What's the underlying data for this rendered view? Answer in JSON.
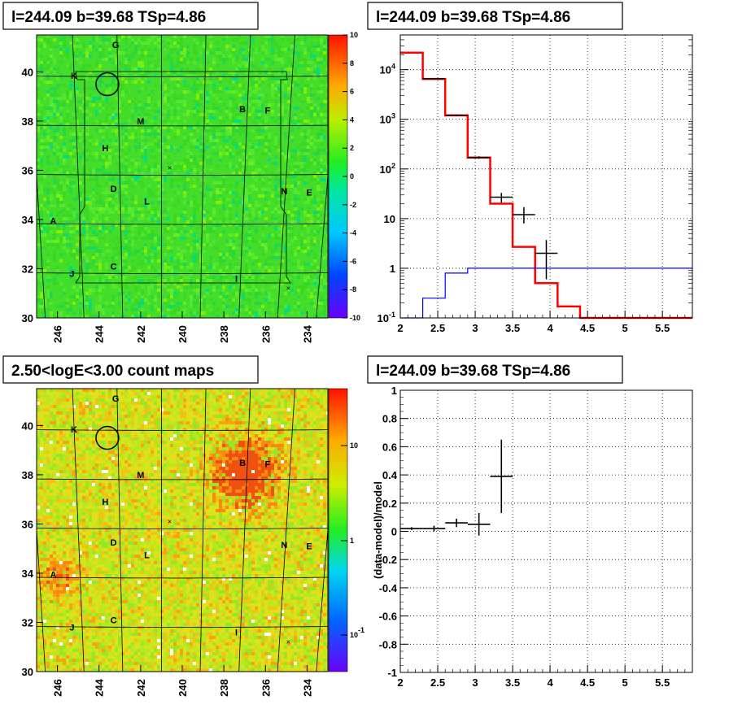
{
  "colors": {
    "red": "#ff0000",
    "blue": "#0000ff",
    "black": "#000000",
    "green_map": "#33dd22"
  },
  "chart_data": [
    {
      "type": "heatmap",
      "title": "l=244.09 b=39.68 TSp=4.86",
      "x_ticks": [
        "246",
        "244",
        "242",
        "240",
        "238",
        "236",
        "234"
      ],
      "y_ticks": [
        "40",
        "38",
        "36",
        "34",
        "32",
        "30"
      ],
      "xlim": [
        247,
        233
      ],
      "ylim": [
        30,
        41.5
      ],
      "palette_ticks": [
        "10",
        "8",
        "6",
        "4",
        "2",
        "0",
        "-2",
        "-4",
        "-6",
        "-8",
        "-10"
      ],
      "palette_range": [
        -10,
        10
      ],
      "palette_scale": "linear",
      "source_labels": [
        {
          "t": "G",
          "l": 243.2,
          "b": 41.1
        },
        {
          "t": "K",
          "l": 245.2,
          "b": 39.85
        },
        {
          "t": "M",
          "l": 242.0,
          "b": 38.0
        },
        {
          "t": "B",
          "l": 237.1,
          "b": 38.5
        },
        {
          "t": "F",
          "l": 235.9,
          "b": 38.45
        },
        {
          "t": "H",
          "l": 243.7,
          "b": 36.9
        },
        {
          "t": "D",
          "l": 243.3,
          "b": 35.25
        },
        {
          "t": "L",
          "l": 241.7,
          "b": 34.75
        },
        {
          "t": "N",
          "l": 235.1,
          "b": 35.15
        },
        {
          "t": "E",
          "l": 233.9,
          "b": 35.1
        },
        {
          "t": "A",
          "l": 246.2,
          "b": 33.95
        },
        {
          "t": "C",
          "l": 243.3,
          "b": 32.1
        },
        {
          "t": "J",
          "l": 245.3,
          "b": 31.8
        },
        {
          "t": "I",
          "l": 237.4,
          "b": 31.6
        }
      ],
      "circle": {
        "l": 243.6,
        "b": 39.5
      },
      "markers": [
        {
          "l": 240.6,
          "b": 36.1
        },
        {
          "l": 234.9,
          "b": 31.2
        }
      ]
    },
    {
      "type": "line",
      "title": "l=244.09 b=39.68 TSp=4.86",
      "x_ticks": [
        "2",
        "2.5",
        "3",
        "3.5",
        "4",
        "4.5",
        "5",
        "5.5"
      ],
      "y_ticks": [
        "10^-1",
        "1",
        "10",
        "10^2",
        "10^3",
        "10^4"
      ],
      "xlim": [
        2,
        5.9
      ],
      "ylim": [
        0.1,
        50000
      ],
      "y_scale": "log",
      "grid": true,
      "series": [
        {
          "color": "#ff0000",
          "edges": [
            2.0,
            2.3,
            2.6,
            2.9,
            3.2,
            3.5,
            3.8,
            4.1,
            4.4,
            5.9
          ],
          "values": [
            22000,
            6500,
            1200,
            170,
            20,
            2.7,
            0.5,
            0.17,
            0.1
          ]
        },
        {
          "color": "#0000ff",
          "edges": [
            2.0,
            2.3,
            2.6,
            2.9,
            3.2,
            5.9
          ],
          "values": [
            0.05,
            0.25,
            0.8,
            1.0,
            1.0
          ]
        },
        {
          "color": "#000000",
          "points": [
            {
              "x": 2.45,
              "y": 6600,
              "xerr": 0.15,
              "ylo": 6400,
              "yhi": 6800
            },
            {
              "x": 2.75,
              "y": 1200,
              "xerr": 0.15,
              "ylo": 1150,
              "yhi": 1250
            },
            {
              "x": 3.05,
              "y": 170,
              "xerr": 0.15,
              "ylo": 160,
              "yhi": 180
            },
            {
              "x": 3.35,
              "y": 27,
              "xerr": 0.15,
              "ylo": 21,
              "yhi": 33
            },
            {
              "x": 3.65,
              "y": 12,
              "xerr": 0.15,
              "ylo": 8,
              "yhi": 17
            },
            {
              "x": 3.95,
              "y": 2,
              "xerr": 0.15,
              "ylo": 0.6,
              "yhi": 3.7
            }
          ]
        }
      ]
    },
    {
      "type": "heatmap",
      "title": "2.50<logE<3.00 count maps",
      "x_ticks": [
        "246",
        "244",
        "242",
        "240",
        "238",
        "236",
        "234"
      ],
      "y_ticks": [
        "40",
        "38",
        "36",
        "34",
        "32",
        "30"
      ],
      "xlim": [
        247,
        233
      ],
      "ylim": [
        30,
        41.5
      ],
      "palette_ticks": [
        "10",
        "1",
        "10^-1"
      ],
      "palette_scale": "log",
      "source_labels": [
        {
          "t": "G",
          "l": 243.2,
          "b": 41.1
        },
        {
          "t": "K",
          "l": 245.2,
          "b": 39.85
        },
        {
          "t": "M",
          "l": 242.0,
          "b": 38.0
        },
        {
          "t": "B",
          "l": 237.1,
          "b": 38.5
        },
        {
          "t": "F",
          "l": 235.9,
          "b": 38.45
        },
        {
          "t": "H",
          "l": 243.7,
          "b": 36.9
        },
        {
          "t": "D",
          "l": 243.3,
          "b": 35.25
        },
        {
          "t": "L",
          "l": 241.7,
          "b": 34.75
        },
        {
          "t": "N",
          "l": 235.1,
          "b": 35.15
        },
        {
          "t": "E",
          "l": 233.9,
          "b": 35.1
        },
        {
          "t": "A",
          "l": 246.2,
          "b": 33.95
        },
        {
          "t": "C",
          "l": 243.3,
          "b": 32.1
        },
        {
          "t": "J",
          "l": 245.3,
          "b": 31.8
        },
        {
          "t": "I",
          "l": 237.4,
          "b": 31.6
        }
      ],
      "circle": {
        "l": 243.6,
        "b": 39.5
      },
      "markers": [
        {
          "l": 240.6,
          "b": 36.1
        },
        {
          "l": 234.9,
          "b": 31.2
        }
      ]
    },
    {
      "type": "scatter",
      "title": "l=244.09 b=39.68 TSp=4.86",
      "ylabel": "(data-model)/model",
      "x_ticks": [
        "2",
        "2.5",
        "3",
        "3.5",
        "4",
        "4.5",
        "5",
        "5.5"
      ],
      "y_ticks": [
        "1",
        "0.8",
        "0.6",
        "0.4",
        "0.2",
        "0",
        "-0.2",
        "-0.4",
        "-0.6",
        "-0.8",
        "-1"
      ],
      "xlim": [
        2,
        5.9
      ],
      "ylim": [
        -1,
        1
      ],
      "grid": true,
      "points": [
        {
          "x": 2.15,
          "y": 0.02,
          "xerr": 0.15,
          "yerr": 0.01
        },
        {
          "x": 2.45,
          "y": 0.02,
          "xerr": 0.15,
          "yerr": 0.02
        },
        {
          "x": 2.75,
          "y": 0.06,
          "xerr": 0.15,
          "yerr": 0.03
        },
        {
          "x": 3.05,
          "y": 0.05,
          "xerr": 0.15,
          "yerr": 0.08
        },
        {
          "x": 3.35,
          "y": 0.39,
          "xerr": 0.15,
          "yerr": 0.26
        }
      ]
    }
  ]
}
